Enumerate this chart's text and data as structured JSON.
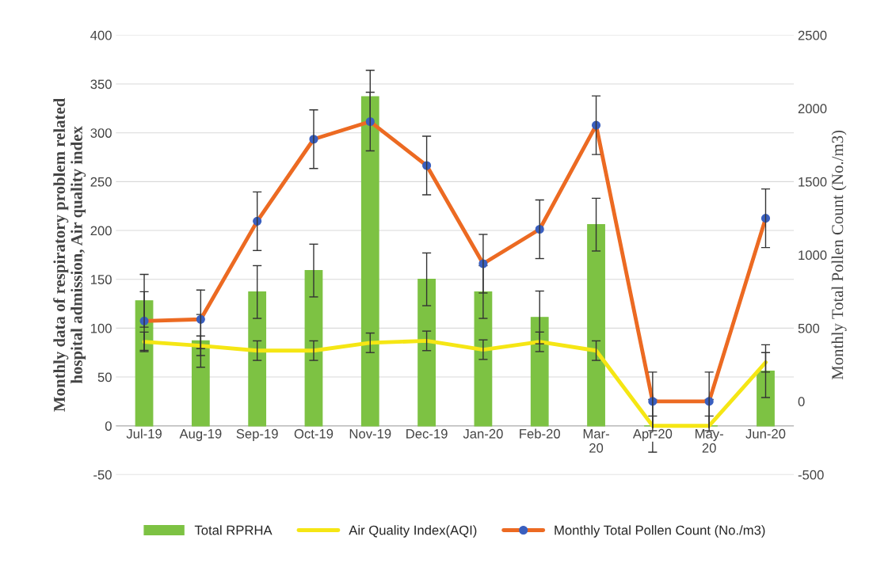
{
  "chart_data": {
    "type": "bar",
    "categories": [
      "Jul-19",
      "Aug-19",
      "Sep-19",
      "Oct-19",
      "Nov-19",
      "Dec-19",
      "Jan-20",
      "Feb-20",
      "Mar-\n20",
      "Apr-20",
      "May-\n20",
      "Jun-20"
    ],
    "ylabel": "Monthly data of respiratory problem related\nhospital admission, Air quality index",
    "y2label": "Monthly Total Pollen Count (No./m3)",
    "series": [
      {
        "name": "Total RPRHA",
        "color": "#7dc243",
        "values": [
          128,
          87,
          137,
          159,
          337,
          150,
          137,
          111,
          206,
          0,
          0,
          56
        ],
        "errors": [
          27,
          27,
          27,
          27,
          27,
          27,
          27,
          27,
          27,
          27,
          27,
          27
        ]
      },
      {
        "name": "Air Quality Index(AQI)",
        "type": "line",
        "color": "#f5e614",
        "values": [
          86,
          82,
          77,
          77,
          85,
          87,
          78,
          86,
          77,
          0,
          0,
          65
        ],
        "errors": [
          10,
          10,
          10,
          10,
          10,
          10,
          10,
          10,
          10,
          10,
          10,
          10
        ]
      },
      {
        "name": "Monthly Total Pollen Count (No./m3)",
        "type": "line",
        "axis": "y2",
        "color": "#ec6a22",
        "marker": "circle",
        "values": [
          549,
          560,
          1230,
          1790,
          1910,
          1610,
          940,
          1175,
          1885,
          0,
          0,
          1250
        ],
        "errors": [
          200,
          200,
          200,
          200,
          200,
          200,
          200,
          200,
          200,
          200,
          200,
          200
        ]
      }
    ],
    "ylim": [
      -50,
      400
    ],
    "yticks": [
      -50,
      0,
      50,
      100,
      150,
      200,
      250,
      300,
      350,
      400
    ],
    "y2lim": [
      -500,
      2500
    ],
    "y2ticks": [
      -500,
      0,
      500,
      1000,
      1500,
      2000,
      2500
    ],
    "grid": "y",
    "legend": "bottom"
  }
}
